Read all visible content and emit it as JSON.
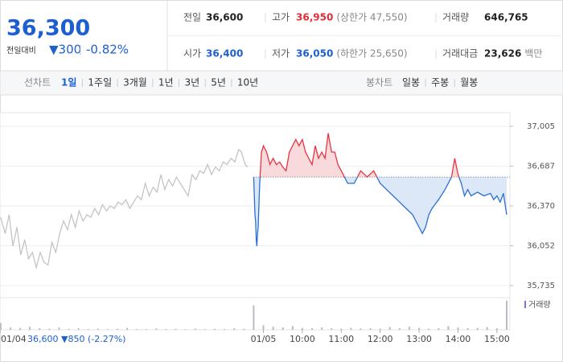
{
  "quote": {
    "price": "36,300",
    "change_label": "전일대비",
    "change": "▼300",
    "change_rate": "-0.82%",
    "stats": [
      {
        "label": "전일",
        "value": "36,600",
        "color": "#222222"
      },
      {
        "label": "고가",
        "value": "36,950",
        "note": "(상한가 47,550)",
        "color": "#e22c36"
      },
      {
        "label": "거래량",
        "value": "646,765",
        "color": "#222222"
      },
      {
        "label": "시가",
        "value": "36,400",
        "color": "#1d5fd0"
      },
      {
        "label": "저가",
        "value": "36,050",
        "note": "(하한가 25,650)",
        "color": "#1d5fd0"
      },
      {
        "label": "거래대금",
        "value": "23,626",
        "note": "백만",
        "color": "#222222"
      }
    ]
  },
  "tabs": {
    "line_label": "선차트",
    "line": [
      "1일",
      "1주일",
      "3개월",
      "1년",
      "3년",
      "5년",
      "10년"
    ],
    "candle_label": "봉차트",
    "candle": [
      "일봉",
      "주봉",
      "월봉"
    ]
  },
  "chart_data": {
    "type": "line",
    "xlim": [
      -406,
      380
    ],
    "ylim": [
      35735,
      37005
    ],
    "yticks": [
      {
        "value": 37005,
        "label": "37,005"
      },
      {
        "value": 36687,
        "label": "36,687"
      },
      {
        "value": 36370,
        "label": "36,370"
      },
      {
        "value": 36052,
        "label": "36,052"
      },
      {
        "value": 35735,
        "label": "35,735"
      }
    ],
    "xticks": [
      {
        "value": -406,
        "label": "01/04"
      },
      {
        "value": 0,
        "label": "01/05"
      },
      {
        "value": 60,
        "label": "10:00"
      },
      {
        "value": 120,
        "label": "11:00"
      },
      {
        "value": 180,
        "label": "12:00"
      },
      {
        "value": 240,
        "label": "13:00"
      },
      {
        "value": 300,
        "label": "14:00"
      },
      {
        "value": 360,
        "label": "15:00"
      }
    ],
    "prev_day_label": "36,600 ▼850 (-2.27%)",
    "reference": 36600,
    "series": [
      {
        "color": "#c4c4c4",
        "x": [
          -405,
          -398,
          -392,
          -386,
          -380,
          -374,
          -368,
          -362,
          -356,
          -350,
          -344,
          -338,
          -332,
          -326,
          -320,
          -314,
          -308,
          -302,
          -296,
          -290,
          -284,
          -278,
          -272,
          -266,
          -260,
          -254,
          -248,
          -242,
          -236,
          -230,
          -224,
          -218,
          -212,
          -206,
          -200,
          -194,
          -188,
          -182,
          -176,
          -170,
          -164,
          -158,
          -152,
          -146,
          -140,
          -134,
          -128,
          -122,
          -116,
          -110,
          -104,
          -98,
          -92,
          -86,
          -80,
          -74,
          -68,
          -62,
          -56,
          -50,
          -44,
          -38,
          -34,
          -28,
          -24
        ],
        "values": [
          36280,
          36150,
          36300,
          36050,
          36200,
          35980,
          36100,
          35950,
          36000,
          35880,
          36000,
          35920,
          35900,
          36080,
          36000,
          36150,
          36250,
          36180,
          36300,
          36200,
          36330,
          36250,
          36300,
          36280,
          36350,
          36300,
          36380,
          36330,
          36370,
          36350,
          36400,
          36380,
          36420,
          36350,
          36400,
          36450,
          36420,
          36550,
          36450,
          36520,
          36480,
          36620,
          36500,
          36580,
          36530,
          36600,
          36550,
          36500,
          36450,
          36620,
          36580,
          36650,
          36630,
          36700,
          36620,
          36680,
          36650,
          36720,
          36700,
          36750,
          36720,
          36820,
          36800,
          36700,
          36680
        ]
      },
      {
        "color_up": "#e8343f",
        "color_down": "#2a6fd6",
        "x": [
          -15,
          -14,
          -13,
          -12,
          -11,
          -10,
          -9,
          -8,
          -7,
          -6,
          -5,
          -3,
          0,
          5,
          10,
          15,
          20,
          25,
          30,
          35,
          40,
          45,
          50,
          55,
          60,
          65,
          70,
          75,
          80,
          85,
          90,
          95,
          100,
          105,
          110,
          115,
          120,
          130,
          140,
          150,
          160,
          170,
          180,
          190,
          200,
          210,
          220,
          230,
          240,
          245,
          250,
          255,
          260,
          270,
          280,
          290,
          295,
          300,
          305,
          310,
          315,
          320,
          330,
          340,
          350,
          355,
          360,
          365,
          370,
          375
        ],
        "values": [
          36600,
          36450,
          36300,
          36250,
          36100,
          36050,
          36150,
          36200,
          36350,
          36500,
          36620,
          36800,
          36850,
          36800,
          36700,
          36750,
          36700,
          36720,
          36680,
          36650,
          36800,
          36850,
          36900,
          36850,
          36900,
          36800,
          36750,
          36700,
          36850,
          36750,
          36800,
          36750,
          36950,
          36800,
          36800,
          36700,
          36650,
          36550,
          36550,
          36650,
          36600,
          36650,
          36550,
          36500,
          36450,
          36400,
          36350,
          36300,
          36200,
          36150,
          36200,
          36300,
          36350,
          36420,
          36500,
          36600,
          36750,
          36620,
          36550,
          36450,
          36500,
          36450,
          36480,
          36450,
          36470,
          36420,
          36450,
          36400,
          36470,
          36300
        ]
      }
    ],
    "volume": {
      "label": "거래량",
      "color": "#b9b9c8",
      "ylim": [
        0,
        40000
      ],
      "x": [
        -405,
        -390,
        -375,
        -360,
        -345,
        -330,
        -315,
        -300,
        -285,
        -270,
        -255,
        -240,
        -225,
        -210,
        -195,
        -180,
        -165,
        -150,
        -135,
        -120,
        -105,
        -90,
        -75,
        -60,
        -45,
        -30,
        -15,
        0,
        15,
        30,
        45,
        60,
        75,
        90,
        105,
        120,
        135,
        150,
        165,
        180,
        195,
        210,
        225,
        240,
        255,
        270,
        285,
        300,
        315,
        330,
        345,
        360,
        375
      ],
      "values": [
        9000,
        3000,
        2500,
        4000,
        2000,
        1500,
        3000,
        1200,
        2000,
        1000,
        1500,
        800,
        1200,
        2500,
        1000,
        900,
        1800,
        1100,
        1300,
        800,
        1500,
        900,
        1200,
        1000,
        2000,
        1400,
        32000,
        6000,
        4000,
        3000,
        5000,
        2500,
        2000,
        3000,
        2000,
        1500,
        2500,
        1800,
        2000,
        1500,
        3500,
        2000,
        4000,
        2500,
        1500,
        2000,
        5000,
        3000,
        2000,
        2500,
        3500,
        2000,
        38000
      ]
    }
  }
}
